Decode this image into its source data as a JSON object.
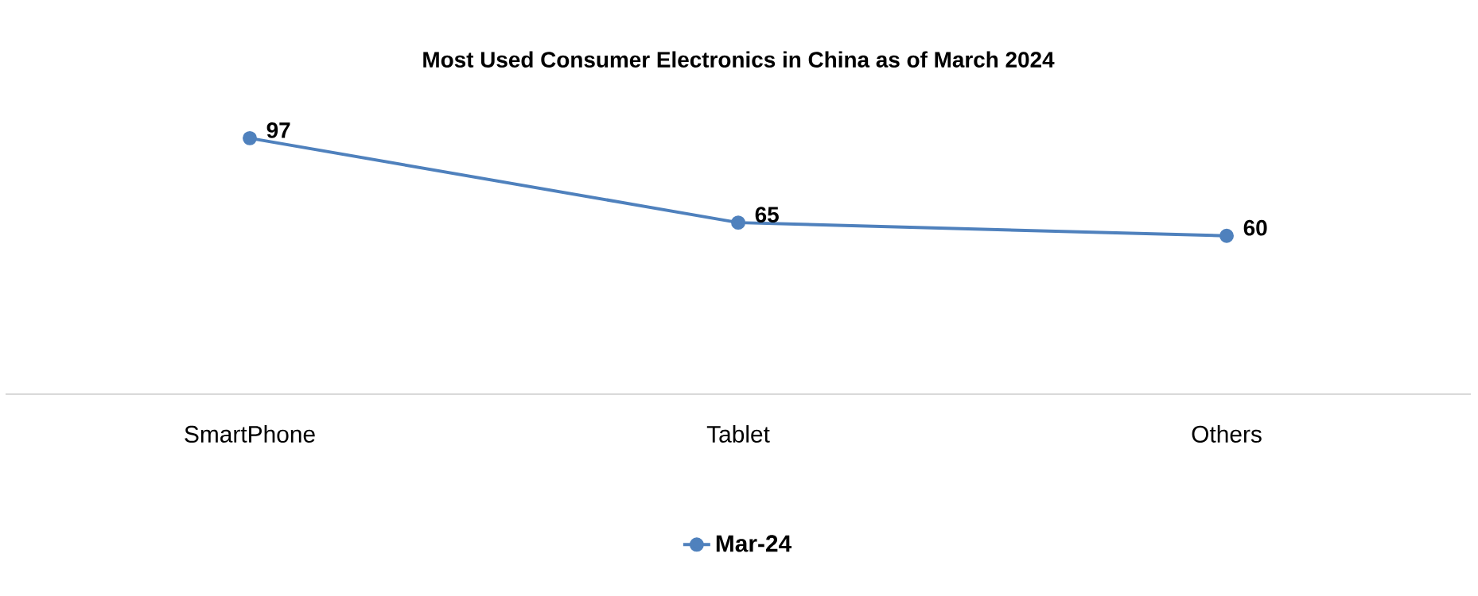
{
  "chart_data": {
    "type": "line",
    "title": "Most Used Consumer Electronics in China as of March 2024",
    "categories": [
      "SmartPhone",
      "Tablet",
      "Others"
    ],
    "series": [
      {
        "name": "Mar-24",
        "color": "#4f81bd",
        "values": [
          97,
          65,
          60
        ]
      }
    ],
    "tick_labels": "x",
    "data_labels": true,
    "marker": "circle",
    "legend": "bottom",
    "grid": false
  }
}
